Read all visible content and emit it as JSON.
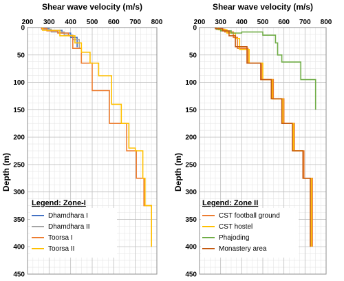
{
  "chart_data": [
    {
      "type": "line",
      "xlabel": "Shear wave velocity (m/s)",
      "ylabel": "Depth (m)",
      "xlim": [
        200,
        800
      ],
      "ylim": [
        0,
        450
      ],
      "y_inverted": true,
      "x_axis_position": "top",
      "x_ticks": [
        "200",
        "300",
        "400",
        "500",
        "600",
        "700",
        "800"
      ],
      "y_ticks": [
        "0",
        "50",
        "100",
        "150",
        "200",
        "250",
        "300",
        "350",
        "400",
        "450"
      ],
      "grid": true,
      "legend_title": "Legend: Zone-I",
      "legend_position": "bottom-left",
      "series": [
        {
          "name": "Dhamdhara I",
          "color": "#4472c4",
          "points": [
            [
              270,
              0
            ],
            [
              270,
              2
            ],
            [
              300,
              2
            ],
            [
              300,
              5
            ],
            [
              360,
              5
            ],
            [
              360,
              10
            ],
            [
              400,
              10
            ],
            [
              400,
              18
            ],
            [
              430,
              18
            ],
            [
              430,
              36
            ]
          ]
        },
        {
          "name": "Dhamdhara II",
          "color": "#a5a5a5",
          "points": [
            [
              265,
              0
            ],
            [
              265,
              3
            ],
            [
              310,
              3
            ],
            [
              310,
              8
            ],
            [
              370,
              8
            ],
            [
              370,
              14
            ],
            [
              410,
              14
            ],
            [
              410,
              22
            ],
            [
              440,
              22
            ],
            [
              440,
              38
            ]
          ]
        },
        {
          "name": "Toorsa I",
          "color": "#ed7d31",
          "points": [
            [
              265,
              0
            ],
            [
              265,
              2
            ],
            [
              290,
              2
            ],
            [
              290,
              6
            ],
            [
              340,
              6
            ],
            [
              340,
              10
            ],
            [
              390,
              10
            ],
            [
              390,
              15
            ],
            [
              410,
              15
            ],
            [
              410,
              38
            ],
            [
              450,
              38
            ],
            [
              450,
              65
            ],
            [
              500,
              65
            ],
            [
              500,
              115
            ],
            [
              580,
              115
            ],
            [
              580,
              175
            ],
            [
              660,
              175
            ],
            [
              660,
              225
            ],
            [
              705,
              225
            ],
            [
              705,
              275
            ],
            [
              740,
              275
            ],
            [
              740,
              325
            ],
            [
              775,
              325
            ],
            [
              775,
              400
            ]
          ]
        },
        {
          "name": "Toorsa II",
          "color": "#ffc000",
          "points": [
            [
              270,
              0
            ],
            [
              270,
              5
            ],
            [
              350,
              5
            ],
            [
              350,
              15
            ],
            [
              420,
              15
            ],
            [
              420,
              28
            ],
            [
              450,
              28
            ],
            [
              450,
              45
            ],
            [
              490,
              45
            ],
            [
              490,
              65
            ],
            [
              530,
              65
            ],
            [
              530,
              88
            ],
            [
              590,
              88
            ],
            [
              590,
              140
            ],
            [
              635,
              140
            ],
            [
              635,
              175
            ],
            [
              670,
              175
            ],
            [
              670,
              220
            ],
            [
              700,
              220
            ],
            [
              700,
              225
            ],
            [
              735,
              225
            ],
            [
              735,
              275
            ],
            [
              745,
              275
            ],
            [
              745,
              325
            ],
            [
              775,
              325
            ],
            [
              775,
              400
            ]
          ]
        }
      ]
    },
    {
      "type": "line",
      "xlabel": "Shear wave velocity (m/s)",
      "ylabel": "Depth (m)",
      "xlim": [
        200,
        800
      ],
      "ylim": [
        0,
        450
      ],
      "y_inverted": true,
      "x_axis_position": "top",
      "x_ticks": [
        "200",
        "300",
        "400",
        "500",
        "600",
        "700",
        "800"
      ],
      "y_ticks": [
        "0",
        "50",
        "100",
        "150",
        "200",
        "250",
        "300",
        "350",
        "400",
        "450"
      ],
      "grid": true,
      "legend_title": "Legend: Zone II",
      "legend_position": "bottom-left",
      "series": [
        {
          "name": "CST football ground",
          "color": "#ed7d31",
          "points": [
            [
              280,
              0
            ],
            [
              280,
              3
            ],
            [
              320,
              3
            ],
            [
              320,
              8
            ],
            [
              360,
              8
            ],
            [
              360,
              18
            ],
            [
              380,
              18
            ],
            [
              380,
              38
            ],
            [
              430,
              38
            ],
            [
              430,
              65
            ],
            [
              495,
              65
            ],
            [
              495,
              95
            ],
            [
              550,
              95
            ],
            [
              550,
              130
            ],
            [
              600,
              130
            ],
            [
              600,
              175
            ],
            [
              650,
              175
            ],
            [
              650,
              225
            ],
            [
              695,
              225
            ],
            [
              695,
              275
            ],
            [
              735,
              275
            ],
            [
              735,
              400
            ]
          ]
        },
        {
          "name": "CST hostel",
          "color": "#ffc000",
          "points": [
            [
              290,
              0
            ],
            [
              290,
              4
            ],
            [
              330,
              4
            ],
            [
              330,
              10
            ],
            [
              370,
              10
            ],
            [
              370,
              20
            ],
            [
              390,
              20
            ],
            [
              390,
              40
            ],
            [
              435,
              40
            ],
            [
              435,
              65
            ],
            [
              500,
              65
            ],
            [
              500,
              95
            ],
            [
              545,
              95
            ],
            [
              545,
              130
            ],
            [
              595,
              130
            ],
            [
              595,
              175
            ],
            [
              645,
              175
            ],
            [
              645,
              225
            ],
            [
              690,
              225
            ],
            [
              690,
              275
            ],
            [
              730,
              275
            ],
            [
              730,
              400
            ]
          ]
        },
        {
          "name": "Phajoding",
          "color": "#70ad47",
          "points": [
            [
              280,
              0
            ],
            [
              280,
              3
            ],
            [
              300,
              3
            ],
            [
              300,
              6
            ],
            [
              350,
              6
            ],
            [
              350,
              10
            ],
            [
              400,
              10
            ],
            [
              400,
              8
            ],
            [
              500,
              8
            ],
            [
              500,
              14
            ],
            [
              560,
              14
            ],
            [
              560,
              28
            ],
            [
              570,
              28
            ],
            [
              570,
              50
            ],
            [
              590,
              50
            ],
            [
              590,
              63
            ],
            [
              680,
              63
            ],
            [
              680,
              95
            ],
            [
              750,
              95
            ],
            [
              750,
              150
            ]
          ]
        },
        {
          "name": "Monastery area",
          "color": "#c55a11",
          "points": [
            [
              275,
              0
            ],
            [
              275,
              2
            ],
            [
              310,
              2
            ],
            [
              310,
              6
            ],
            [
              340,
              6
            ],
            [
              340,
              15
            ],
            [
              370,
              15
            ],
            [
              370,
              35
            ],
            [
              425,
              35
            ],
            [
              425,
              65
            ],
            [
              490,
              65
            ],
            [
              490,
              95
            ],
            [
              540,
              95
            ],
            [
              540,
              130
            ],
            [
              590,
              130
            ],
            [
              590,
              175
            ],
            [
              640,
              175
            ],
            [
              640,
              225
            ],
            [
              690,
              225
            ],
            [
              690,
              275
            ],
            [
              725,
              275
            ],
            [
              725,
              400
            ]
          ]
        }
      ]
    }
  ]
}
